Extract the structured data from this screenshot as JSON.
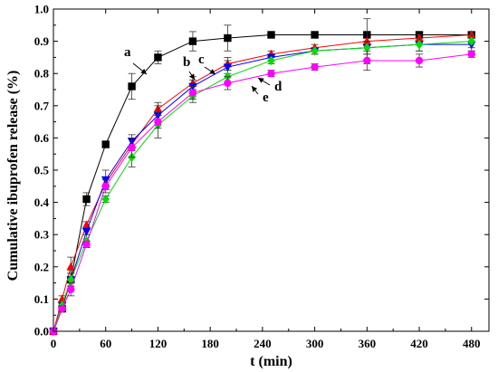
{
  "chart_data": {
    "type": "line",
    "title": "",
    "xlabel": "t (min)",
    "ylabel": "Cumulative ibuprofen release (%)",
    "xlim": [
      0,
      500
    ],
    "ylim": [
      0,
      1.0
    ],
    "xticks": [
      "0",
      "60",
      "120",
      "180",
      "240",
      "300",
      "360",
      "420",
      "480"
    ],
    "yticks": [
      "0.0",
      "0.1",
      "0.2",
      "0.3",
      "0.4",
      "0.5",
      "0.6",
      "0.7",
      "0.8",
      "0.9",
      "1.0"
    ],
    "grid": false,
    "legend": "none",
    "series": [
      {
        "name": "a",
        "color": "#000000",
        "marker": "square",
        "x": [
          0,
          10,
          20,
          38,
          60,
          90,
          120,
          160,
          200,
          250,
          300,
          360,
          420,
          480
        ],
        "y": [
          0.0,
          0.07,
          0.16,
          0.41,
          0.58,
          0.76,
          0.85,
          0.9,
          0.91,
          0.92,
          0.92,
          0.92,
          0.92,
          0.92
        ],
        "err": [
          0,
          0.01,
          0.03,
          0.02,
          0.01,
          0.04,
          0.02,
          0.03,
          0.04,
          0.01,
          0.01,
          0.01,
          0.01,
          0.01
        ]
      },
      {
        "name": "b",
        "color": "#ff0000",
        "marker": "triangle-up",
        "x": [
          0,
          10,
          20,
          38,
          60,
          90,
          120,
          160,
          200,
          250,
          300,
          360,
          420,
          480
        ],
        "y": [
          0.0,
          0.1,
          0.2,
          0.33,
          0.46,
          0.58,
          0.69,
          0.77,
          0.83,
          0.86,
          0.88,
          0.9,
          0.91,
          0.92
        ],
        "err": [
          0,
          0.01,
          0.03,
          0.01,
          0.02,
          0.02,
          0.02,
          0.02,
          0.02,
          0.01,
          0.01,
          0.07,
          0.01,
          0.01
        ]
      },
      {
        "name": "c",
        "color": "#0000ff",
        "marker": "triangle-down",
        "x": [
          0,
          10,
          20,
          38,
          60,
          90,
          120,
          160,
          200,
          250,
          300,
          360,
          420,
          480
        ],
        "y": [
          0.0,
          0.08,
          0.16,
          0.31,
          0.47,
          0.59,
          0.67,
          0.76,
          0.82,
          0.85,
          0.87,
          0.88,
          0.89,
          0.89
        ],
        "err": [
          0,
          0.01,
          0.02,
          0.01,
          0.03,
          0.02,
          0.03,
          0.02,
          0.02,
          0.01,
          0.01,
          0.02,
          0.02,
          0.02
        ]
      },
      {
        "name": "d",
        "color": "#00dd00",
        "marker": "diamond",
        "x": [
          0,
          10,
          20,
          38,
          60,
          90,
          120,
          160,
          200,
          250,
          300,
          360,
          420,
          480
        ],
        "y": [
          0.0,
          0.08,
          0.16,
          0.28,
          0.41,
          0.54,
          0.64,
          0.73,
          0.79,
          0.84,
          0.87,
          0.88,
          0.89,
          0.9
        ],
        "err": [
          0,
          0.01,
          0.02,
          0.02,
          0.01,
          0.03,
          0.04,
          0.02,
          0.02,
          0.01,
          0.01,
          0.02,
          0.02,
          0.02
        ]
      },
      {
        "name": "e",
        "color": "#ff00ff",
        "marker": "circle",
        "x": [
          0,
          10,
          20,
          38,
          60,
          90,
          120,
          160,
          200,
          250,
          300,
          360,
          420,
          480
        ],
        "y": [
          0.0,
          0.07,
          0.13,
          0.27,
          0.45,
          0.57,
          0.65,
          0.74,
          0.77,
          0.8,
          0.82,
          0.84,
          0.84,
          0.86
        ],
        "err": [
          0,
          0.01,
          0.02,
          0.01,
          0.02,
          0.03,
          0.02,
          0.02,
          0.02,
          0.01,
          0.01,
          0.03,
          0.02,
          0.01
        ]
      }
    ],
    "annotations": [
      "a",
      "b",
      "c",
      "d",
      "e"
    ]
  }
}
